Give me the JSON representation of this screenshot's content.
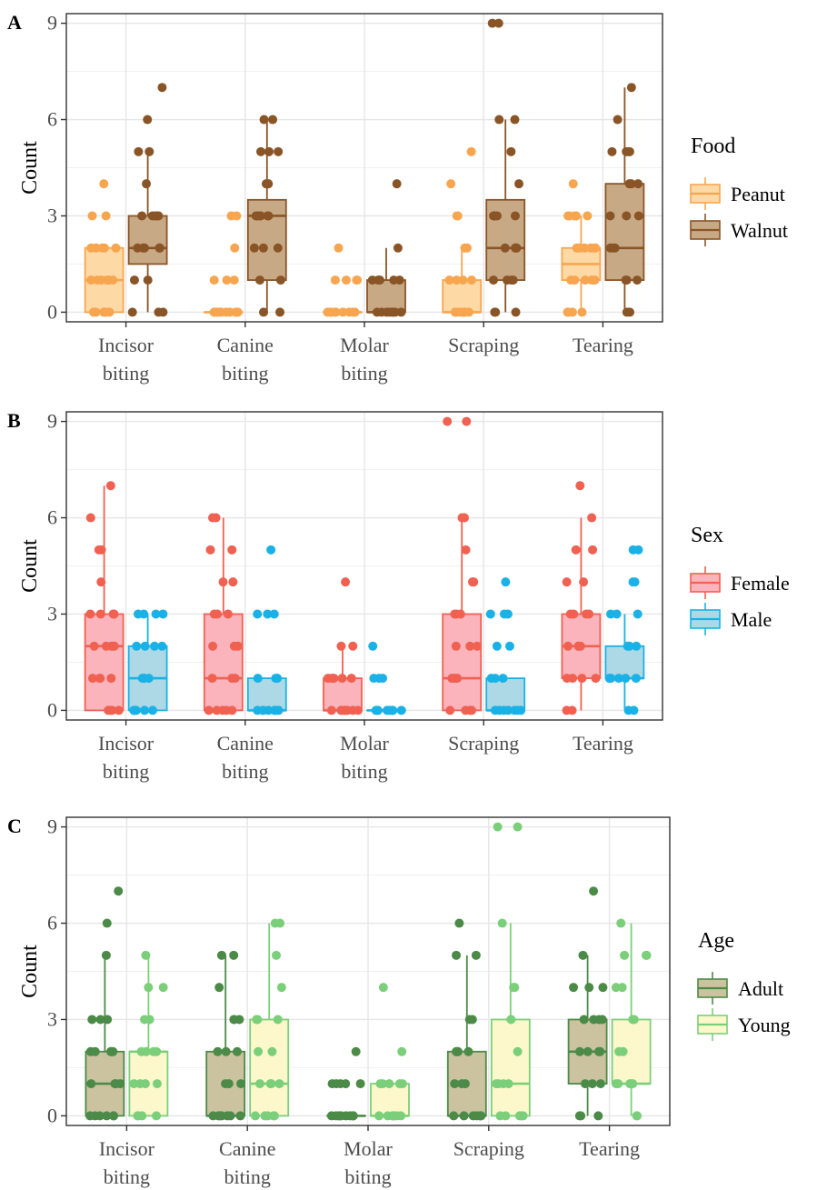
{
  "chart_data": [
    {
      "panel_label": "A",
      "type": "box",
      "categories": [
        "Incisor\nbiting",
        "Canine\nbiting",
        "Molar\nbiting",
        "Scraping",
        "Tearing"
      ],
      "ylabel": "Count",
      "xlabel": "",
      "ylim": [
        -0.3,
        9.3
      ],
      "yticks": [
        0,
        3,
        6,
        9
      ],
      "grid": true,
      "legend": {
        "title": "Food",
        "position": "right"
      },
      "series": [
        {
          "name": "Peanut",
          "fill": "#fdd9a5",
          "line": "#f8a54f",
          "boxes": [
            {
              "min": 0,
              "q1": 0,
              "median": 1,
              "q3": 2,
              "max": 2,
              "points": [
                4,
                3,
                3,
                2,
                2,
                2,
                2,
                2,
                1,
                1,
                1,
                1,
                1,
                1,
                0,
                0,
                0,
                0,
                0,
                0
              ]
            },
            {
              "min": 0,
              "q1": 0,
              "median": 0,
              "q3": 0,
              "max": 0,
              "points": [
                3,
                3,
                2,
                1,
                1,
                1,
                0,
                0,
                0,
                0,
                0,
                0,
                0,
                0,
                0,
                0
              ]
            },
            {
              "min": 0,
              "q1": 0,
              "median": 0,
              "q3": 0,
              "max": 0,
              "points": [
                2,
                1,
                1,
                1,
                1,
                0,
                0,
                0,
                0,
                0,
                0,
                0,
                0,
                0
              ]
            },
            {
              "min": 0,
              "q1": 0,
              "median": 0,
              "q3": 1,
              "max": 2,
              "points": [
                5,
                4,
                3,
                3,
                2,
                2,
                1,
                1,
                1,
                1,
                0,
                0,
                0,
                0,
                0,
                0,
                0,
                0,
                0
              ]
            },
            {
              "min": 0,
              "q1": 1,
              "median": 1.5,
              "q3": 2,
              "max": 3,
              "points": [
                4,
                3,
                3,
                3,
                3,
                3,
                2,
                2,
                2,
                2,
                2,
                2,
                1,
                1,
                1,
                1,
                1,
                1,
                0,
                0,
                0,
                0
              ]
            }
          ]
        },
        {
          "name": "Walnut",
          "fill": "#c8a986",
          "line": "#8a5526",
          "boxes": [
            {
              "min": 0,
              "q1": 1.5,
              "median": 2,
              "q3": 3,
              "max": 5,
              "points": [
                7,
                6,
                5,
                5,
                4,
                3,
                3,
                3,
                3,
                3,
                2,
                2,
                2,
                2,
                2,
                1,
                1,
                0,
                0,
                0
              ]
            },
            {
              "min": 0,
              "q1": 1,
              "median": 3,
              "q3": 3.5,
              "max": 6,
              "points": [
                6,
                6,
                5,
                5,
                5,
                4,
                4,
                3,
                3,
                3,
                3,
                3,
                3,
                2,
                2,
                2,
                1,
                1,
                0,
                0
              ]
            },
            {
              "min": 0,
              "q1": 0,
              "median": 0,
              "q3": 1,
              "max": 2,
              "points": [
                4,
                2,
                1,
                1,
                1,
                1,
                1,
                1,
                0,
                0,
                0,
                0,
                0,
                0,
                0,
                0
              ]
            },
            {
              "min": 0,
              "q1": 1,
              "median": 2,
              "q3": 3.5,
              "max": 6,
              "points": [
                9,
                9,
                6,
                6,
                5,
                4,
                3,
                3,
                3,
                3,
                3,
                2,
                2,
                2,
                2,
                1,
                1,
                1,
                1,
                0,
                0,
                0
              ]
            },
            {
              "min": 0,
              "q1": 1,
              "median": 2,
              "q3": 4,
              "max": 7,
              "points": [
                7,
                6,
                5,
                5,
                5,
                5,
                4,
                4,
                4,
                3,
                3,
                3,
                2,
                2,
                2,
                1,
                1,
                1,
                0,
                0
              ]
            }
          ]
        }
      ]
    },
    {
      "panel_label": "B",
      "type": "box",
      "categories": [
        "Incisor\nbiting",
        "Canine\nbiting",
        "Molar\nbiting",
        "Scraping",
        "Tearing"
      ],
      "ylabel": "Count",
      "xlabel": "",
      "ylim": [
        -0.3,
        9.3
      ],
      "yticks": [
        0,
        3,
        6,
        9
      ],
      "grid": true,
      "legend": {
        "title": "Sex",
        "position": "right"
      },
      "series": [
        {
          "name": "Female",
          "fill": "#fbb4bb",
          "line": "#f06152",
          "boxes": [
            {
              "min": 0,
              "q1": 0,
              "median": 2,
              "q3": 3,
              "max": 7,
              "points": [
                7,
                6,
                5,
                5,
                4,
                3,
                3,
                3,
                3,
                3,
                2,
                2,
                2,
                2,
                2,
                1,
                1,
                1,
                1,
                0,
                0,
                0,
                0
              ]
            },
            {
              "min": 0,
              "q1": 0,
              "median": 1,
              "q3": 3,
              "max": 6,
              "points": [
                6,
                6,
                5,
                5,
                4,
                4,
                3,
                3,
                3,
                2,
                2,
                2,
                1,
                1,
                1,
                0,
                0,
                0,
                0,
                0
              ]
            },
            {
              "min": 0,
              "q1": 0,
              "median": 0,
              "q3": 1,
              "max": 2,
              "points": [
                4,
                2,
                2,
                1,
                1,
                1,
                1,
                1,
                1,
                0,
                0,
                0,
                0,
                0,
                0,
                0,
                0
              ]
            },
            {
              "min": 0,
              "q1": 0,
              "median": 1,
              "q3": 3,
              "max": 6,
              "points": [
                9,
                9,
                6,
                6,
                5,
                4,
                4,
                3,
                3,
                3,
                2,
                2,
                2,
                1,
                1,
                1,
                1,
                0,
                0,
                0,
                0
              ]
            },
            {
              "min": 0,
              "q1": 1,
              "median": 2,
              "q3": 3,
              "max": 6,
              "points": [
                7,
                6,
                5,
                5,
                4,
                4,
                3,
                3,
                3,
                3,
                2,
                2,
                2,
                2,
                1,
                1,
                1,
                1,
                0,
                0
              ]
            }
          ]
        },
        {
          "name": "Male",
          "fill": "#add8e6",
          "line": "#1ab2e6",
          "boxes": [
            {
              "min": 0,
              "q1": 0,
              "median": 1,
              "q3": 2,
              "max": 3,
              "points": [
                3,
                3,
                3,
                3,
                2,
                2,
                2,
                2,
                1,
                1,
                1,
                1,
                0,
                0,
                0,
                0,
                0,
                0
              ]
            },
            {
              "min": 0,
              "q1": 0,
              "median": 0,
              "q3": 1,
              "max": 1,
              "points": [
                5,
                3,
                3,
                3,
                1,
                1,
                1,
                1,
                0,
                0,
                0,
                0,
                0,
                0,
                0,
                0
              ]
            },
            {
              "min": 0,
              "q1": 0,
              "median": 0,
              "q3": 0,
              "max": 0,
              "points": [
                2,
                1,
                1,
                1,
                0,
                0,
                0,
                0,
                0,
                0,
                0,
                0,
                0
              ]
            },
            {
              "min": 0,
              "q1": 0,
              "median": 0,
              "q3": 1,
              "max": 1,
              "points": [
                4,
                3,
                3,
                3,
                2,
                2,
                1,
                1,
                1,
                0,
                0,
                0,
                0,
                0,
                0,
                0
              ]
            },
            {
              "min": 0,
              "q1": 1,
              "median": 1,
              "q3": 2,
              "max": 3,
              "points": [
                5,
                5,
                4,
                4,
                3,
                3,
                3,
                2,
                2,
                2,
                1,
                1,
                1,
                1,
                1,
                0,
                0
              ]
            }
          ]
        }
      ]
    },
    {
      "panel_label": "C",
      "type": "box",
      "categories": [
        "Incisor\nbiting",
        "Canine\nbiting",
        "Molar\nbiting",
        "Scraping",
        "Tearing"
      ],
      "ylabel": "Count",
      "xlabel": "",
      "ylim": [
        -0.3,
        9.3
      ],
      "yticks": [
        0,
        3,
        6,
        9
      ],
      "grid": true,
      "legend": {
        "title": "Age",
        "position": "right"
      },
      "series": [
        {
          "name": "Adult",
          "fill": "#cbc29f",
          "line": "#4c8a48",
          "boxes": [
            {
              "min": 0,
              "q1": 0,
              "median": 1,
              "q3": 2,
              "max": 5,
              "points": [
                7,
                6,
                5,
                3,
                3,
                3,
                2,
                2,
                2,
                2,
                2,
                1,
                1,
                1,
                1,
                0,
                0,
                0,
                0,
                0,
                0
              ]
            },
            {
              "min": 0,
              "q1": 0,
              "median": 0,
              "q3": 2,
              "max": 5,
              "points": [
                5,
                5,
                4,
                3,
                3,
                3,
                2,
                2,
                2,
                1,
                1,
                1,
                0,
                0,
                0,
                0,
                0,
                0,
                0
              ]
            },
            {
              "min": 0,
              "q1": 0,
              "median": 0,
              "q3": 0,
              "max": 0,
              "points": [
                2,
                1,
                1,
                1,
                1,
                1,
                0,
                0,
                0,
                0,
                0,
                0,
                0,
                0,
                0,
                0
              ]
            },
            {
              "min": 0,
              "q1": 0,
              "median": 0,
              "q3": 2,
              "max": 5,
              "points": [
                6,
                5,
                5,
                3,
                3,
                2,
                2,
                2,
                2,
                1,
                1,
                1,
                0,
                0,
                0,
                0,
                0,
                0,
                0
              ]
            },
            {
              "min": 0,
              "q1": 1,
              "median": 2,
              "q3": 3,
              "max": 5,
              "points": [
                7,
                5,
                4,
                4,
                4,
                3,
                3,
                3,
                3,
                2,
                2,
                2,
                2,
                1,
                1,
                1,
                0,
                0,
                0
              ]
            }
          ]
        },
        {
          "name": "Young",
          "fill": "#fdf8cc",
          "line": "#7ccf7a",
          "boxes": [
            {
              "min": 0,
              "q1": 0,
              "median": 2,
              "q3": 2,
              "max": 5,
              "points": [
                5,
                4,
                4,
                3,
                3,
                2,
                2,
                2,
                2,
                1,
                1,
                1,
                1,
                0,
                0,
                0,
                0
              ]
            },
            {
              "min": 0,
              "q1": 0,
              "median": 1,
              "q3": 3,
              "max": 6,
              "points": [
                6,
                6,
                5,
                4,
                3,
                3,
                3,
                2,
                2,
                1,
                1,
                1,
                1,
                0,
                0,
                0,
                0,
                0
              ]
            },
            {
              "min": 0,
              "q1": 0,
              "median": 0,
              "q3": 1,
              "max": 1,
              "points": [
                4,
                2,
                1,
                1,
                1,
                1,
                1,
                0,
                0,
                0,
                0,
                0,
                0,
                0,
                0
              ]
            },
            {
              "min": 0,
              "q1": 0,
              "median": 1,
              "q3": 3,
              "max": 6,
              "points": [
                9,
                9,
                6,
                4,
                4,
                3,
                2,
                1,
                1,
                1,
                1,
                0,
                0,
                0,
                0,
                0
              ]
            },
            {
              "min": 0,
              "q1": 1,
              "median": 1,
              "q3": 3,
              "max": 6,
              "points": [
                6,
                5,
                5,
                5,
                4,
                4,
                3,
                3,
                2,
                2,
                1,
                1,
                1,
                1,
                1,
                0,
                0
              ]
            }
          ]
        }
      ]
    }
  ]
}
